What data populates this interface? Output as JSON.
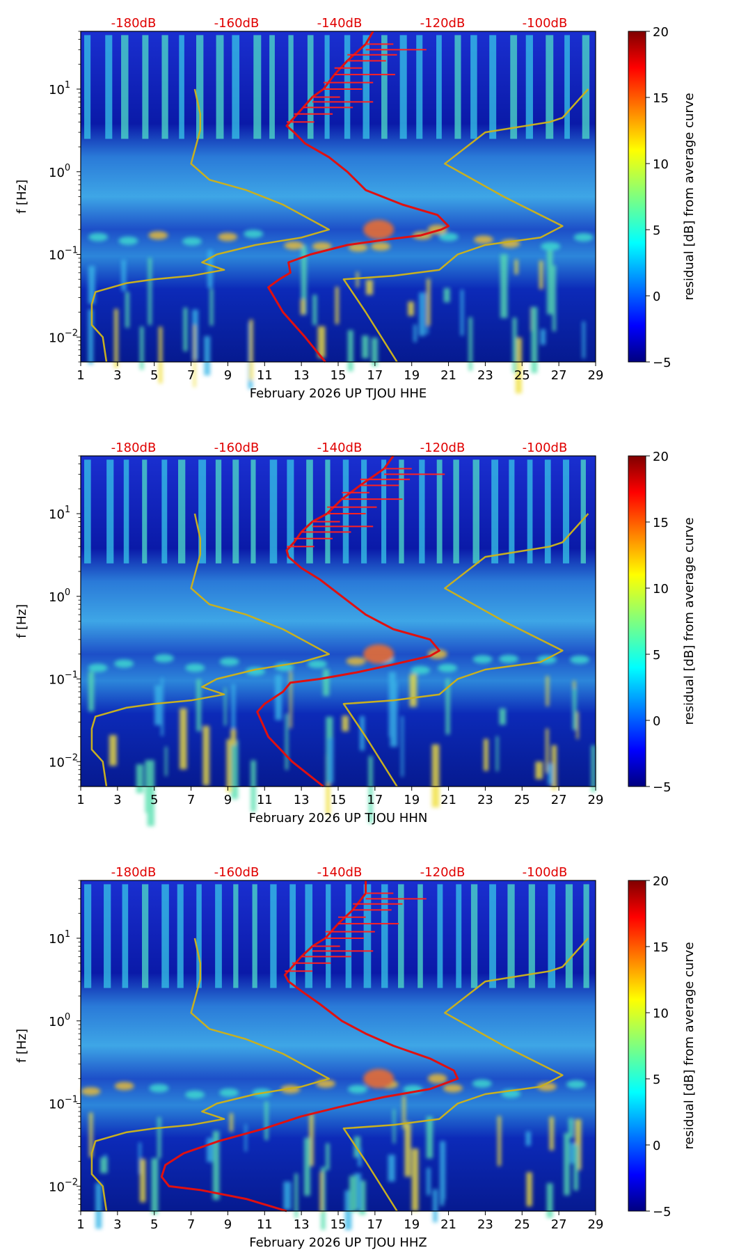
{
  "chart_data": [
    {
      "type": "heatmap",
      "title": "February 2026 UP TJOU  HHE",
      "xlabel": "February 2026 UP TJOU  HHE",
      "ylabel": "f [Hz]",
      "x_ticks": [
        "1",
        "3",
        "5",
        "7",
        "9",
        "11",
        "13",
        "15",
        "17",
        "19",
        "21",
        "23",
        "25",
        "27",
        "29"
      ],
      "xlim": [
        1,
        29
      ],
      "y_ticks": [
        "10^-2",
        "10^-1",
        "10^0",
        "10^1"
      ],
      "ylim": [
        0.005,
        50
      ],
      "top_ticks": [
        "-180dB",
        "-160dB",
        "-140dB",
        "-120dB",
        "-100dB"
      ],
      "colorbar": {
        "label": "residual [dB] from average curve",
        "ticks": [
          "20",
          "15",
          "10",
          "5",
          "0",
          "−5"
        ],
        "range": [
          -5,
          20
        ]
      },
      "series": [
        {
          "name": "red curve",
          "color": "#e01010",
          "points": [
            [
              14.3,
              0.005
            ],
            [
              13.2,
              0.01
            ],
            [
              12.0,
              0.02
            ],
            [
              11.2,
              0.04
            ],
            [
              11.8,
              0.05
            ],
            [
              12.4,
              0.06
            ],
            [
              12.3,
              0.08
            ],
            [
              13.5,
              0.1
            ],
            [
              15.5,
              0.13
            ],
            [
              17.5,
              0.15
            ],
            [
              19.5,
              0.17
            ],
            [
              20.6,
              0.2
            ],
            [
              21.0,
              0.22
            ],
            [
              20.4,
              0.3
            ],
            [
              18.5,
              0.4
            ],
            [
              16.5,
              0.6
            ],
            [
              15.5,
              1.0
            ],
            [
              14.5,
              1.5
            ],
            [
              13.2,
              2.2
            ],
            [
              12.6,
              3
            ],
            [
              12.2,
              3.6
            ],
            [
              12.6,
              4.5
            ],
            [
              13.1,
              6
            ],
            [
              13.6,
              8
            ],
            [
              14.2,
              10
            ],
            [
              14.8,
              15
            ],
            [
              15.5,
              22
            ],
            [
              16.5,
              35
            ],
            [
              16.9,
              50
            ]
          ]
        },
        {
          "name": "olive curve left",
          "color": "#c8b020",
          "points": [
            [
              2.4,
              0.005
            ],
            [
              2.2,
              0.01
            ],
            [
              1.6,
              0.014
            ],
            [
              1.6,
              0.025
            ],
            [
              1.8,
              0.035
            ],
            [
              3.5,
              0.045
            ],
            [
              5.0,
              0.05
            ],
            [
              7.0,
              0.055
            ],
            [
              8.8,
              0.065
            ],
            [
              7.6,
              0.08
            ],
            [
              8.4,
              0.1
            ],
            [
              10.5,
              0.13
            ],
            [
              13.0,
              0.16
            ],
            [
              14.5,
              0.2
            ],
            [
              12.0,
              0.4
            ],
            [
              10.0,
              0.6
            ],
            [
              8.0,
              0.8
            ],
            [
              7.0,
              1.25
            ],
            [
              7.5,
              3.2
            ],
            [
              7.5,
              5.0
            ],
            [
              7.2,
              10
            ]
          ]
        },
        {
          "name": "olive curve right",
          "color": "#c8b020",
          "points": [
            [
              18.2,
              0.005
            ],
            [
              16.5,
              0.02
            ],
            [
              15.3,
              0.05
            ],
            [
              18.0,
              0.055
            ],
            [
              20.5,
              0.065
            ],
            [
              21.5,
              0.1
            ],
            [
              23.0,
              0.13
            ],
            [
              26.0,
              0.16
            ],
            [
              27.2,
              0.22
            ],
            [
              24.0,
              0.5
            ],
            [
              20.8,
              1.25
            ],
            [
              23.0,
              3.0
            ],
            [
              26.5,
              4.0
            ],
            [
              27.2,
              4.5
            ],
            [
              28.6,
              10
            ]
          ]
        }
      ]
    },
    {
      "type": "heatmap",
      "title": "February 2026 UP TJOU  HHN",
      "xlabel": "February 2026 UP TJOU  HHN",
      "ylabel": "f [Hz]",
      "x_ticks": [
        "1",
        "3",
        "5",
        "7",
        "9",
        "11",
        "13",
        "15",
        "17",
        "19",
        "21",
        "23",
        "25",
        "27",
        "29"
      ],
      "xlim": [
        1,
        29
      ],
      "y_ticks": [
        "10^-2",
        "10^-1",
        "10^0",
        "10^1"
      ],
      "ylim": [
        0.005,
        50
      ],
      "top_ticks": [
        "-180dB",
        "-160dB",
        "-140dB",
        "-120dB",
        "-100dB"
      ],
      "colorbar": {
        "label": "residual [dB] from average curve",
        "ticks": [
          "20",
          "15",
          "10",
          "5",
          "0",
          "−5"
        ],
        "range": [
          -5,
          20
        ]
      },
      "series": [
        {
          "name": "red curve",
          "color": "#e01010",
          "points": [
            [
              14.2,
              0.005
            ],
            [
              12.5,
              0.01
            ],
            [
              11.2,
              0.02
            ],
            [
              10.6,
              0.04
            ],
            [
              11.0,
              0.05
            ],
            [
              12.0,
              0.07
            ],
            [
              12.4,
              0.09
            ],
            [
              14.0,
              0.1
            ],
            [
              16.0,
              0.12
            ],
            [
              18.0,
              0.15
            ],
            [
              20.0,
              0.19
            ],
            [
              20.5,
              0.22
            ],
            [
              20.0,
              0.3
            ],
            [
              18.0,
              0.4
            ],
            [
              16.5,
              0.6
            ],
            [
              15.2,
              1.0
            ],
            [
              14.0,
              1.6
            ],
            [
              13.0,
              2.2
            ],
            [
              12.3,
              3.0
            ],
            [
              12.2,
              3.6
            ],
            [
              12.6,
              4.5
            ],
            [
              13.0,
              6
            ],
            [
              13.6,
              8
            ],
            [
              14.4,
              10
            ],
            [
              15.2,
              15
            ],
            [
              16.2,
              22
            ],
            [
              17.5,
              35
            ],
            [
              18.0,
              50
            ]
          ]
        },
        {
          "name": "olive curve left",
          "color": "#c8b020",
          "points": [
            [
              2.4,
              0.005
            ],
            [
              2.2,
              0.01
            ],
            [
              1.6,
              0.014
            ],
            [
              1.6,
              0.025
            ],
            [
              1.8,
              0.035
            ],
            [
              3.5,
              0.045
            ],
            [
              5.0,
              0.05
            ],
            [
              7.0,
              0.055
            ],
            [
              8.8,
              0.065
            ],
            [
              7.6,
              0.08
            ],
            [
              8.4,
              0.1
            ],
            [
              10.5,
              0.13
            ],
            [
              13.0,
              0.16
            ],
            [
              14.5,
              0.2
            ],
            [
              12.0,
              0.4
            ],
            [
              10.0,
              0.6
            ],
            [
              8.0,
              0.8
            ],
            [
              7.0,
              1.25
            ],
            [
              7.5,
              3.2
            ],
            [
              7.5,
              5.0
            ],
            [
              7.2,
              10
            ]
          ]
        },
        {
          "name": "olive curve right",
          "color": "#c8b020",
          "points": [
            [
              18.2,
              0.005
            ],
            [
              16.5,
              0.02
            ],
            [
              15.3,
              0.05
            ],
            [
              18.0,
              0.055
            ],
            [
              20.5,
              0.065
            ],
            [
              21.5,
              0.1
            ],
            [
              23.0,
              0.13
            ],
            [
              26.0,
              0.16
            ],
            [
              27.2,
              0.22
            ],
            [
              24.0,
              0.5
            ],
            [
              20.8,
              1.25
            ],
            [
              23.0,
              3.0
            ],
            [
              26.5,
              4.0
            ],
            [
              27.2,
              4.5
            ],
            [
              28.6,
              10
            ]
          ]
        }
      ]
    },
    {
      "type": "heatmap",
      "title": "February 2026 UP TJOU  HHZ",
      "xlabel": "February 2026 UP TJOU  HHZ",
      "ylabel": "f [Hz]",
      "x_ticks": [
        "1",
        "3",
        "5",
        "7",
        "9",
        "11",
        "13",
        "15",
        "17",
        "19",
        "21",
        "23",
        "25",
        "27",
        "29"
      ],
      "xlim": [
        1,
        29
      ],
      "y_ticks": [
        "10^-2",
        "10^-1",
        "10^0",
        "10^1"
      ],
      "ylim": [
        0.005,
        50
      ],
      "top_ticks": [
        "-180dB",
        "-160dB",
        "-140dB",
        "-120dB",
        "-100dB"
      ],
      "colorbar": {
        "label": "residual [dB] from average curve",
        "ticks": [
          "20",
          "15",
          "10",
          "5",
          "0",
          "−5"
        ],
        "range": [
          -5,
          20
        ]
      },
      "series": [
        {
          "name": "red curve",
          "color": "#e01010",
          "points": [
            [
              12.2,
              0.005
            ],
            [
              10.0,
              0.007
            ],
            [
              7.5,
              0.009
            ],
            [
              5.8,
              0.01
            ],
            [
              5.4,
              0.013
            ],
            [
              5.6,
              0.018
            ],
            [
              6.6,
              0.025
            ],
            [
              8.5,
              0.035
            ],
            [
              11.0,
              0.05
            ],
            [
              13.0,
              0.07
            ],
            [
              15.0,
              0.09
            ],
            [
              17.5,
              0.12
            ],
            [
              20.0,
              0.15
            ],
            [
              21.5,
              0.2
            ],
            [
              21.3,
              0.25
            ],
            [
              20.0,
              0.35
            ],
            [
              18.0,
              0.5
            ],
            [
              16.5,
              0.7
            ],
            [
              15.2,
              1.0
            ],
            [
              14.0,
              1.6
            ],
            [
              13.0,
              2.3
            ],
            [
              12.3,
              3
            ],
            [
              12.1,
              3.6
            ],
            [
              12.5,
              4.5
            ],
            [
              13.0,
              6
            ],
            [
              13.6,
              8
            ],
            [
              14.3,
              10
            ],
            [
              15.0,
              15
            ],
            [
              15.8,
              22
            ],
            [
              16.5,
              35
            ],
            [
              16.5,
              50
            ]
          ]
        },
        {
          "name": "olive curve left",
          "color": "#c8b020",
          "points": [
            [
              2.4,
              0.005
            ],
            [
              2.2,
              0.01
            ],
            [
              1.6,
              0.014
            ],
            [
              1.6,
              0.025
            ],
            [
              1.8,
              0.035
            ],
            [
              3.5,
              0.045
            ],
            [
              5.0,
              0.05
            ],
            [
              7.0,
              0.055
            ],
            [
              8.8,
              0.065
            ],
            [
              7.6,
              0.08
            ],
            [
              8.4,
              0.1
            ],
            [
              10.5,
              0.13
            ],
            [
              13.0,
              0.16
            ],
            [
              14.5,
              0.2
            ],
            [
              12.0,
              0.4
            ],
            [
              10.0,
              0.6
            ],
            [
              8.0,
              0.8
            ],
            [
              7.0,
              1.25
            ],
            [
              7.5,
              3.2
            ],
            [
              7.5,
              5.0
            ],
            [
              7.2,
              10
            ]
          ]
        },
        {
          "name": "olive curve right",
          "color": "#c8b020",
          "points": [
            [
              18.2,
              0.005
            ],
            [
              16.5,
              0.02
            ],
            [
              15.3,
              0.05
            ],
            [
              18.0,
              0.055
            ],
            [
              20.5,
              0.065
            ],
            [
              21.5,
              0.1
            ],
            [
              23.0,
              0.13
            ],
            [
              26.0,
              0.16
            ],
            [
              27.2,
              0.22
            ],
            [
              24.0,
              0.5
            ],
            [
              20.8,
              1.25
            ],
            [
              23.0,
              3.0
            ],
            [
              26.5,
              4.0
            ],
            [
              27.2,
              4.5
            ],
            [
              28.6,
              10
            ]
          ]
        }
      ]
    }
  ]
}
